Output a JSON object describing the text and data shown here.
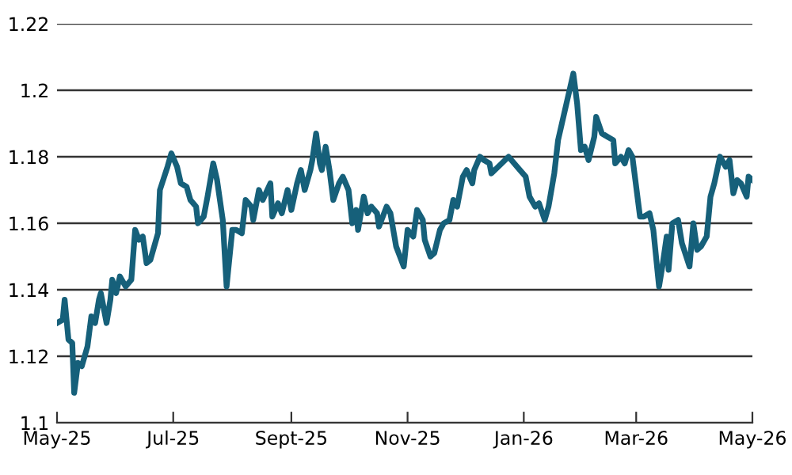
{
  "chart_data": {
    "type": "line",
    "grid": "y",
    "marker": "none",
    "line_style": "solid",
    "xlim": [
      "2025-05-01",
      "2026-05-01"
    ],
    "xticks": [
      {
        "value": "2025-05-01",
        "label": "May-25"
      },
      {
        "value": "2025-07-01",
        "label": "Jul-25"
      },
      {
        "value": "2025-09-01",
        "label": "Sept-25"
      },
      {
        "value": "2025-11-01",
        "label": "Nov-25"
      },
      {
        "value": "2026-01-01",
        "label": "Jan-26"
      },
      {
        "value": "2026-03-01",
        "label": "Mar-26"
      },
      {
        "value": "2026-05-01",
        "label": "May-26"
      }
    ],
    "ylim": [
      1.1,
      1.22
    ],
    "yticks": [
      1.1,
      1.12,
      1.14,
      1.16,
      1.18,
      1.2,
      1.22
    ],
    "series": [
      {
        "color": "#16607a",
        "x": [
          "2025-05-01",
          "2025-05-04",
          "2025-05-05",
          "2025-05-07",
          "2025-05-09",
          "2025-05-10",
          "2025-05-12",
          "2025-05-14",
          "2025-05-17",
          "2025-05-19",
          "2025-05-21",
          "2025-05-23",
          "2025-05-24",
          "2025-05-27",
          "2025-05-29",
          "2025-05-30",
          "2025-06-01",
          "2025-06-03",
          "2025-06-06",
          "2025-06-09",
          "2025-06-11",
          "2025-06-13",
          "2025-06-15",
          "2025-06-17",
          "2025-06-19",
          "2025-06-23",
          "2025-06-24",
          "2025-06-28",
          "2025-06-30",
          "2025-07-03",
          "2025-07-05",
          "2025-07-08",
          "2025-07-10",
          "2025-07-13",
          "2025-07-14",
          "2025-07-17",
          "2025-07-19",
          "2025-07-22",
          "2025-07-24",
          "2025-07-27",
          "2025-07-29",
          "2025-08-01",
          "2025-08-03",
          "2025-08-06",
          "2025-08-08",
          "2025-08-11",
          "2025-08-12",
          "2025-08-15",
          "2025-08-17",
          "2025-08-21",
          "2025-08-22",
          "2025-08-25",
          "2025-08-27",
          "2025-08-30",
          "2025-09-01",
          "2025-09-04",
          "2025-09-06",
          "2025-09-08",
          "2025-09-11",
          "2025-09-12",
          "2025-09-14",
          "2025-09-16",
          "2025-09-17",
          "2025-09-19",
          "2025-09-21",
          "2025-09-23",
          "2025-09-26",
          "2025-09-28",
          "2025-10-01",
          "2025-10-03",
          "2025-10-05",
          "2025-10-06",
          "2025-10-09",
          "2025-10-11",
          "2025-10-13",
          "2025-10-16",
          "2025-10-17",
          "2025-10-21",
          "2025-10-23",
          "2025-10-26",
          "2025-10-28",
          "2025-10-30",
          "2025-11-01",
          "2025-11-04",
          "2025-11-06",
          "2025-11-09",
          "2025-11-10",
          "2025-11-13",
          "2025-11-15",
          "2025-11-18",
          "2025-11-20",
          "2025-11-23",
          "2025-11-25",
          "2025-11-27",
          "2025-11-30",
          "2025-12-02",
          "2025-12-05",
          "2025-12-06",
          "2025-12-09",
          "2025-12-11",
          "2025-12-14",
          "2025-12-15",
          "2025-12-24",
          "2025-12-30",
          "2026-01-02",
          "2026-01-04",
          "2026-01-07",
          "2026-01-09",
          "2026-01-12",
          "2026-01-14",
          "2026-01-17",
          "2026-01-19",
          "2026-01-21",
          "2026-01-27",
          "2026-01-29",
          "2026-01-31",
          "2026-02-02",
          "2026-02-04",
          "2026-02-07",
          "2026-02-08",
          "2026-02-11",
          "2026-02-14",
          "2026-02-17",
          "2026-02-18",
          "2026-02-21",
          "2026-02-23",
          "2026-02-25",
          "2026-02-27",
          "2026-03-03",
          "2026-03-05",
          "2026-03-08",
          "2026-03-10",
          "2026-03-13",
          "2026-03-15",
          "2026-03-17",
          "2026-03-18",
          "2026-03-20",
          "2026-03-23",
          "2026-03-25",
          "2026-03-29",
          "2026-03-31",
          "2026-04-02",
          "2026-04-04",
          "2026-04-07",
          "2026-04-09",
          "2026-04-11",
          "2026-04-14",
          "2026-04-17",
          "2026-04-19",
          "2026-04-21",
          "2026-04-23",
          "2026-04-25",
          "2026-04-28",
          "2026-04-29",
          "2026-05-01"
        ],
        "values": [
          1.13,
          1.131,
          1.137,
          1.125,
          1.124,
          1.109,
          1.118,
          1.117,
          1.123,
          1.132,
          1.13,
          1.137,
          1.139,
          1.13,
          1.137,
          1.143,
          1.139,
          1.144,
          1.141,
          1.143,
          1.158,
          1.155,
          1.156,
          1.148,
          1.149,
          1.157,
          1.17,
          1.177,
          1.181,
          1.177,
          1.172,
          1.171,
          1.167,
          1.165,
          1.16,
          1.162,
          1.168,
          1.178,
          1.173,
          1.161,
          1.141,
          1.158,
          1.158,
          1.157,
          1.167,
          1.165,
          1.161,
          1.17,
          1.167,
          1.172,
          1.162,
          1.166,
          1.163,
          1.17,
          1.164,
          1.172,
          1.176,
          1.17,
          1.176,
          1.179,
          1.187,
          1.178,
          1.176,
          1.183,
          1.176,
          1.167,
          1.172,
          1.174,
          1.17,
          1.16,
          1.164,
          1.158,
          1.168,
          1.163,
          1.165,
          1.163,
          1.159,
          1.165,
          1.163,
          1.153,
          1.15,
          1.147,
          1.158,
          1.156,
          1.164,
          1.161,
          1.155,
          1.15,
          1.151,
          1.158,
          1.16,
          1.161,
          1.167,
          1.165,
          1.174,
          1.176,
          1.172,
          1.176,
          1.18,
          1.179,
          1.178,
          1.175,
          1.18,
          1.176,
          1.174,
          1.168,
          1.165,
          1.166,
          1.161,
          1.165,
          1.175,
          1.185,
          1.19,
          1.205,
          1.196,
          1.182,
          1.183,
          1.179,
          1.186,
          1.192,
          1.187,
          1.186,
          1.185,
          1.178,
          1.18,
          1.178,
          1.182,
          1.18,
          1.162,
          1.162,
          1.163,
          1.158,
          1.141,
          1.148,
          1.156,
          1.146,
          1.16,
          1.161,
          1.154,
          1.147,
          1.16,
          1.152,
          1.153,
          1.156,
          1.168,
          1.172,
          1.18,
          1.177,
          1.179,
          1.169,
          1.173,
          1.172,
          1.168,
          1.174,
          1.173
        ]
      }
    ]
  }
}
